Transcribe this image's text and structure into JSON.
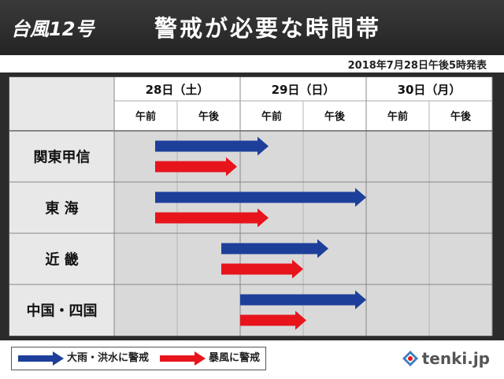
{
  "header": {
    "title_left": "台風12号",
    "title_right": "警戒が必要な時間帯",
    "issued": "2018年7月28日午後5時発表"
  },
  "legend": {
    "rain": "大雨・洪水に警戒",
    "wind": "暴風に警戒"
  },
  "logo": {
    "text": "tenki.jp"
  },
  "colors": {
    "rain": "#1d3f9a",
    "wind": "#e8141c",
    "region_bg": "#e8e8e8",
    "grid_bg": "#d9d9d9",
    "header_bg": "#ffffff"
  },
  "chart_data": {
    "type": "gantt",
    "title": "警戒が必要な時間帯",
    "days": [
      "28日（土）",
      "29日（日）",
      "30日（月）"
    ],
    "periods": [
      "午前",
      "午後",
      "午前",
      "午後",
      "午前",
      "午後"
    ],
    "time_unit": "half-day periods from 28日 午前 (0) to 30日 午後 end (6)",
    "regions": [
      {
        "name": "関東甲信",
        "rain": {
          "start": 0.65,
          "end": 2.45
        },
        "wind": {
          "start": 0.65,
          "end": 1.95
        }
      },
      {
        "name": "東 海",
        "rain": {
          "start": 0.65,
          "end": 4.0
        },
        "wind": {
          "start": 0.65,
          "end": 2.45
        }
      },
      {
        "name": "近 畿",
        "rain": {
          "start": 1.7,
          "end": 3.4
        },
        "wind": {
          "start": 1.7,
          "end": 3.0
        }
      },
      {
        "name": "中国・四国",
        "rain": {
          "start": 2.0,
          "end": 4.0
        },
        "wind": {
          "start": 2.0,
          "end": 3.05
        }
      }
    ]
  }
}
